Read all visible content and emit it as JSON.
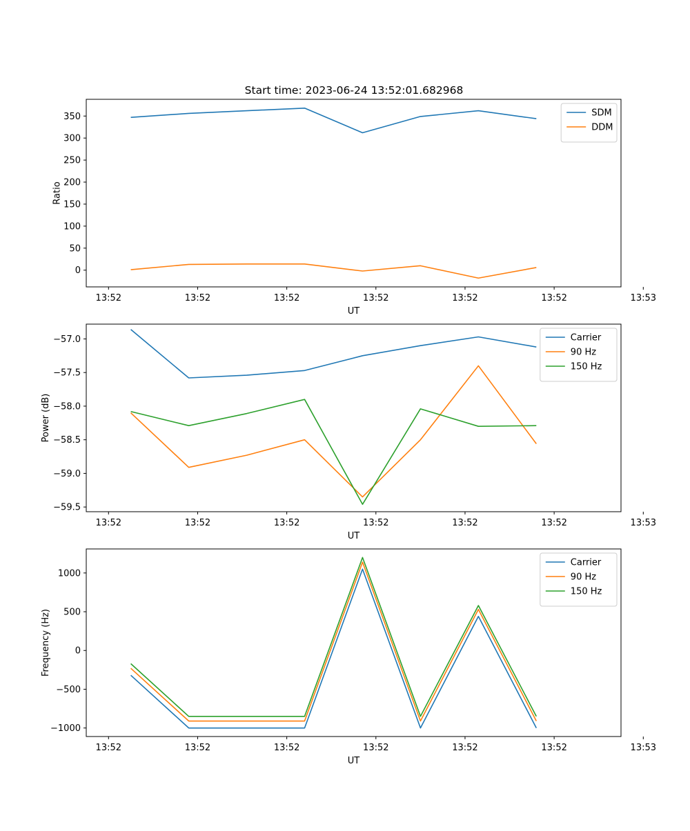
{
  "figure": {
    "title": "Start time: 2023-06-24 13:52:01.682968",
    "background": "#ffffff"
  },
  "chart_data": [
    {
      "type": "line",
      "xlabel": "UT",
      "ylabel": "Ratio",
      "x_tick_labels": [
        "13:52",
        "13:52",
        "13:52",
        "13:52",
        "13:52",
        "13:52",
        "13:53"
      ],
      "xlim": [
        -0.25,
        5.75
      ],
      "y_ticks": [
        0,
        50,
        100,
        150,
        200,
        250,
        300,
        350
      ],
      "ylim": [
        -38,
        388
      ],
      "legend": "top-right",
      "grid": false,
      "x": [
        0.25,
        0.9,
        1.55,
        2.2,
        2.85,
        3.5,
        4.15,
        4.8
      ],
      "series": [
        {
          "name": "SDM",
          "color": "#1f77b4",
          "values": [
            347,
            356,
            362,
            368,
            312,
            349,
            362,
            344
          ]
        },
        {
          "name": "DDM",
          "color": "#ff7f0e",
          "values": [
            1,
            13,
            14,
            14,
            -2,
            10,
            -18,
            6
          ]
        }
      ]
    },
    {
      "type": "line",
      "xlabel": "UT",
      "ylabel": "Power (dB)",
      "x_tick_labels": [
        "13:52",
        "13:52",
        "13:52",
        "13:52",
        "13:52",
        "13:52",
        "13:53"
      ],
      "xlim": [
        -0.25,
        5.75
      ],
      "y_ticks": [
        -59.5,
        -59.0,
        -58.5,
        -58.0,
        -57.5,
        -57.0
      ],
      "y_tick_labels": [
        "−59.5",
        "−59.0",
        "−58.5",
        "−58.0",
        "−57.5",
        "−57.0"
      ],
      "ylim": [
        -59.57,
        -56.78
      ],
      "legend": "top-right",
      "grid": false,
      "x": [
        0.25,
        0.9,
        1.55,
        2.2,
        2.85,
        3.5,
        4.15,
        4.8
      ],
      "series": [
        {
          "name": "Carrier",
          "color": "#1f77b4",
          "values": [
            -56.86,
            -57.58,
            -57.54,
            -57.47,
            -57.25,
            -57.1,
            -56.97,
            -57.12
          ]
        },
        {
          "name": "90 Hz",
          "color": "#ff7f0e",
          "values": [
            -58.1,
            -58.91,
            -58.73,
            -58.5,
            -59.35,
            -58.5,
            -57.4,
            -58.56
          ]
        },
        {
          "name": "150 Hz",
          "color": "#2ca02c",
          "values": [
            -58.08,
            -58.29,
            -58.11,
            -57.9,
            -59.46,
            -58.04,
            -58.3,
            -58.29
          ]
        }
      ]
    },
    {
      "type": "line",
      "xlabel": "UT",
      "ylabel": "Frequency (Hz)",
      "x_tick_labels": [
        "13:52",
        "13:52",
        "13:52",
        "13:52",
        "13:52",
        "13:52",
        "13:53"
      ],
      "xlim": [
        -0.25,
        5.75
      ],
      "y_ticks": [
        -1000,
        -500,
        0,
        500,
        1000
      ],
      "y_tick_labels": [
        "−1000",
        "−500",
        "0",
        "500",
        "1000"
      ],
      "ylim": [
        -1110,
        1310
      ],
      "legend": "top-right",
      "grid": false,
      "x": [
        0.25,
        0.9,
        1.55,
        2.2,
        2.85,
        3.5,
        4.15,
        4.8
      ],
      "series": [
        {
          "name": "Carrier",
          "color": "#1f77b4",
          "values": [
            -320,
            -1000,
            -1000,
            -1000,
            1050,
            -1000,
            440,
            -1000
          ]
        },
        {
          "name": "90 Hz",
          "color": "#ff7f0e",
          "values": [
            -230,
            -910,
            -910,
            -910,
            1140,
            -910,
            530,
            -910
          ]
        },
        {
          "name": "150 Hz",
          "color": "#2ca02c",
          "values": [
            -170,
            -850,
            -850,
            -850,
            1200,
            -850,
            580,
            -850
          ]
        }
      ]
    }
  ]
}
